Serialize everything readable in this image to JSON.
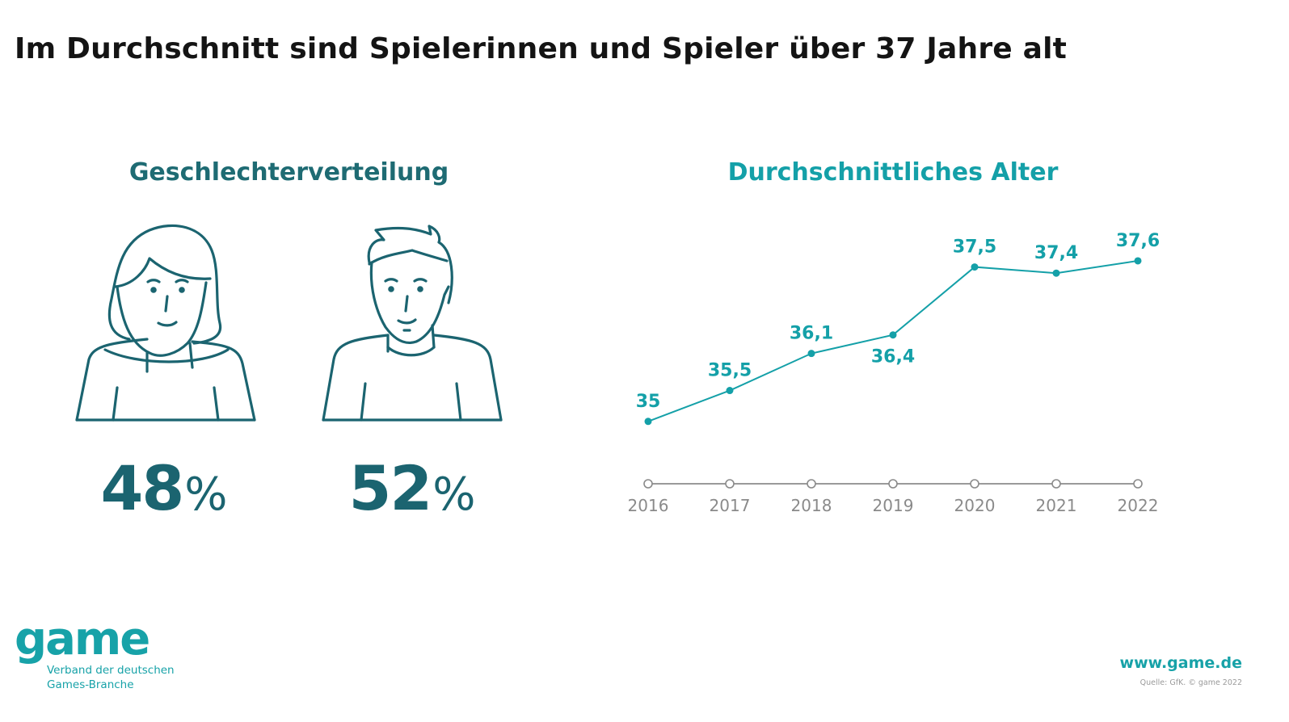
{
  "title": "Im Durchschnitt sind Spielerinnen und Spieler über 37 Jahre alt",
  "gender": {
    "heading": "Geschlechterverteilung",
    "female": {
      "icon": "woman-icon",
      "value": "48",
      "unit": "%"
    },
    "male": {
      "icon": "man-icon",
      "value": "52",
      "unit": "%"
    }
  },
  "colors": {
    "teal_dark": "#1b6470",
    "teal_bright": "#14a0a8",
    "axis_gray": "#8a8a8a"
  },
  "footer": {
    "logo_word": "game",
    "logo_line1": "Verband der deutschen",
    "logo_line2": "Games-Branche",
    "url": "www.game.de",
    "source": "Quelle: GfK. © game 2022"
  },
  "chart_data": {
    "type": "line",
    "title": "Durchschnittliches Alter",
    "xlabel": "",
    "ylabel": "",
    "categories": [
      "2016",
      "2017",
      "2018",
      "2019",
      "2020",
      "2021",
      "2022"
    ],
    "values": [
      35,
      35.5,
      36.1,
      36.4,
      37.5,
      37.4,
      37.6
    ],
    "labels": [
      "35",
      "35,5",
      "36,1",
      "36,4",
      "37,5",
      "37,4",
      "37,6"
    ],
    "label_position": [
      "above",
      "above",
      "above",
      "below",
      "above",
      "above",
      "above"
    ],
    "ylim": [
      34.5,
      37.9
    ],
    "grid": false,
    "legend": "none"
  }
}
